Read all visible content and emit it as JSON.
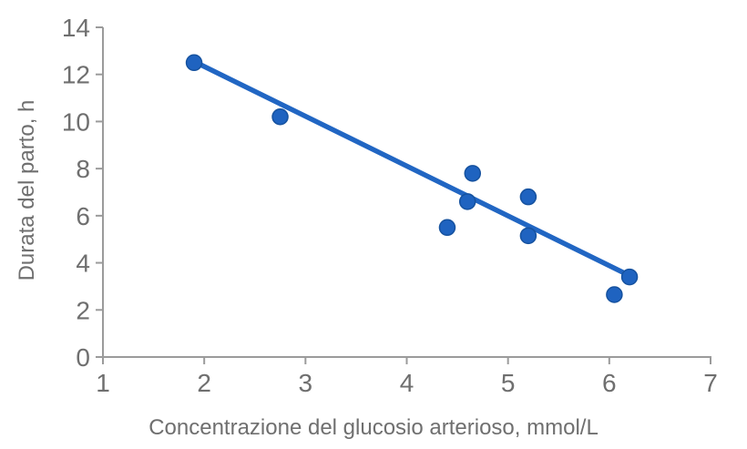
{
  "chart_data": {
    "type": "scatter",
    "title": "",
    "xlabel": "Concentrazione del glucosio arterioso, mmol/L",
    "ylabel": "Durata del parto, h",
    "xlim": [
      1,
      7
    ],
    "ylim": [
      0,
      14
    ],
    "x_ticks": [
      1,
      2,
      3,
      4,
      5,
      6,
      7
    ],
    "y_ticks": [
      0,
      2,
      4,
      6,
      8,
      10,
      12,
      14
    ],
    "grid": false,
    "legend": false,
    "points": [
      {
        "x": 1.9,
        "y": 12.5
      },
      {
        "x": 2.75,
        "y": 10.2
      },
      {
        "x": 4.4,
        "y": 5.5
      },
      {
        "x": 4.6,
        "y": 6.6
      },
      {
        "x": 4.65,
        "y": 7.8
      },
      {
        "x": 5.2,
        "y": 6.8
      },
      {
        "x": 5.2,
        "y": 5.15
      },
      {
        "x": 6.05,
        "y": 2.65
      },
      {
        "x": 6.2,
        "y": 3.4
      }
    ],
    "trendline": {
      "x1": 1.9,
      "y1": 12.55,
      "x2": 6.25,
      "y2": 3.35
    },
    "colors": {
      "point_fill": "#1f63c0",
      "point_stroke": "#16529f",
      "trendline": "#2166c3",
      "axis": "#9b9b9b",
      "label": "#6f6f6f"
    }
  }
}
